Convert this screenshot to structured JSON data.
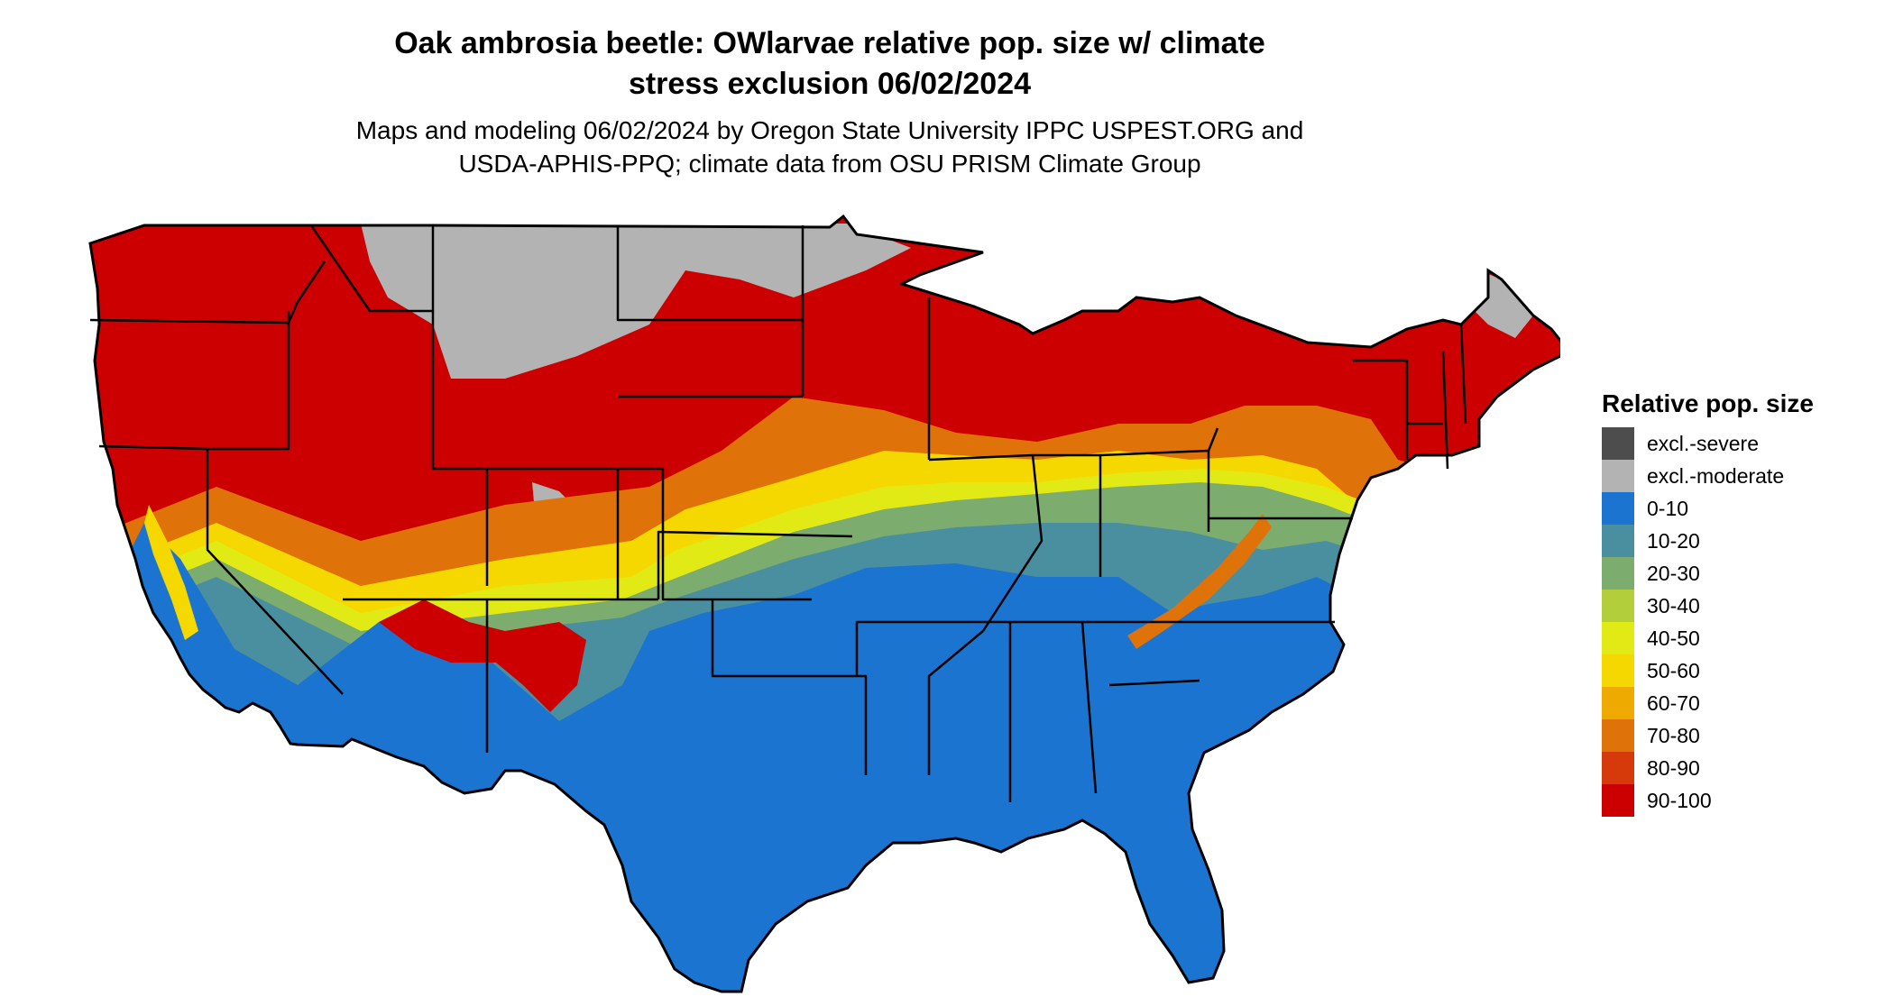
{
  "title_line1": "Oak ambrosia beetle: OWlarvae relative pop. size w/ climate",
  "title_line2": "stress exclusion 06/02/2024",
  "subtitle_line1": "Maps and modeling 06/02/2024 by Oregon State University IPPC USPEST.ORG and",
  "subtitle_line2": "USDA-APHIS-PPQ; climate data from OSU PRISM Climate Group",
  "legend": {
    "title": "Relative pop. size",
    "items": [
      {
        "label": "excl.-severe",
        "color": "#4d4d4d"
      },
      {
        "label": "excl.-moderate",
        "color": "#b3b3b3"
      },
      {
        "label": "0-10",
        "color": "#1b74d0"
      },
      {
        "label": "10-20",
        "color": "#4a8fa0"
      },
      {
        "label": "20-30",
        "color": "#7cac6e"
      },
      {
        "label": "30-40",
        "color": "#b2cf3b"
      },
      {
        "label": "40-50",
        "color": "#e2ea15"
      },
      {
        "label": "50-60",
        "color": "#f5d800"
      },
      {
        "label": "60-70",
        "color": "#eeaa00"
      },
      {
        "label": "70-80",
        "color": "#e0720a"
      },
      {
        "label": "80-90",
        "color": "#d73a0a"
      },
      {
        "label": "90-100",
        "color": "#cc0000"
      }
    ]
  }
}
